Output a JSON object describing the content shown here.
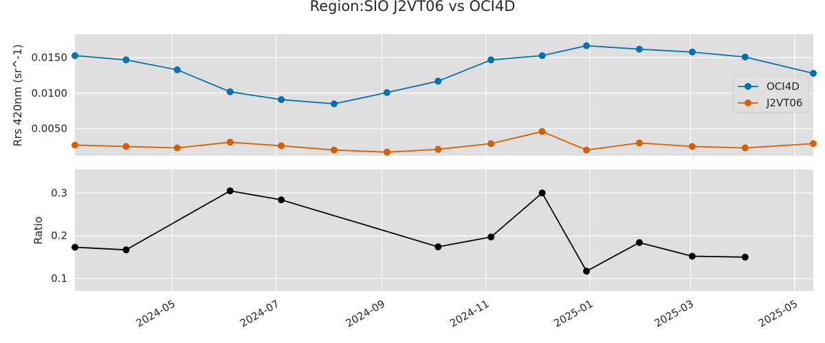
{
  "chart_data": {
    "title": "Region:SIO J2VT06 vs OCI4D",
    "type": "line",
    "x_axis": {
      "type": "date",
      "xlim": [
        "2024-03-05",
        "2025-05-12"
      ],
      "tick_labels": [
        "2024-05",
        "2024-07",
        "2024-09",
        "2024-11",
        "2025-01",
        "2025-03",
        "2025-05"
      ]
    },
    "grid": true,
    "panels": [
      {
        "ylabel": "Rrs 420nm (sr^-1)",
        "ylim": [
          0.0012,
          0.0183
        ],
        "yticks": [
          "0.0050",
          "0.0100",
          "0.0150"
        ],
        "legend_position": "right",
        "series": [
          {
            "name": "OCI4D",
            "color": "#0072b2",
            "x": [
              "2024-03-05",
              "2024-04-04",
              "2024-05-04",
              "2024-06-04",
              "2024-07-04",
              "2024-08-04",
              "2024-09-04",
              "2024-10-04",
              "2024-11-04",
              "2024-12-04",
              "2024-12-30",
              "2025-01-30",
              "2025-03-02",
              "2025-04-02",
              "2025-05-12"
            ],
            "y": [
              0.0153,
              0.0147,
              0.0133,
              0.0102,
              0.0091,
              0.0085,
              0.0101,
              0.0117,
              0.0147,
              0.0153,
              0.0167,
              0.0162,
              0.0158,
              0.0151,
              0.0128
            ]
          },
          {
            "name": "J2VT06",
            "color": "#d55e00",
            "x": [
              "2024-03-05",
              "2024-04-04",
              "2024-05-04",
              "2024-06-04",
              "2024-07-04",
              "2024-08-04",
              "2024-09-04",
              "2024-10-04",
              "2024-11-04",
              "2024-12-04",
              "2024-12-30",
              "2025-01-30",
              "2025-03-02",
              "2025-04-02",
              "2025-05-12"
            ],
            "y": [
              0.0027,
              0.0025,
              0.0023,
              0.0031,
              0.0026,
              0.002,
              0.0017,
              0.0021,
              0.0029,
              0.0046,
              0.002,
              0.003,
              0.0025,
              0.0023,
              0.0029
            ]
          }
        ]
      },
      {
        "ylabel": "Ratio",
        "ylim": [
          0.071,
          0.355
        ],
        "yticks": [
          "0.1",
          "0.2",
          "0.3"
        ],
        "series": [
          {
            "name": "",
            "color": "#000000",
            "x": [
              "2024-03-05",
              "2024-04-04",
              "2024-06-04",
              "2024-07-04",
              "2024-10-04",
              "2024-11-04",
              "2024-12-04",
              "2024-12-30",
              "2025-01-30",
              "2025-03-02",
              "2025-04-02"
            ],
            "y": [
              0.173,
              0.167,
              0.305,
              0.284,
              0.174,
              0.197,
              0.3,
              0.117,
              0.184,
              0.152,
              0.15
            ]
          }
        ]
      }
    ]
  }
}
